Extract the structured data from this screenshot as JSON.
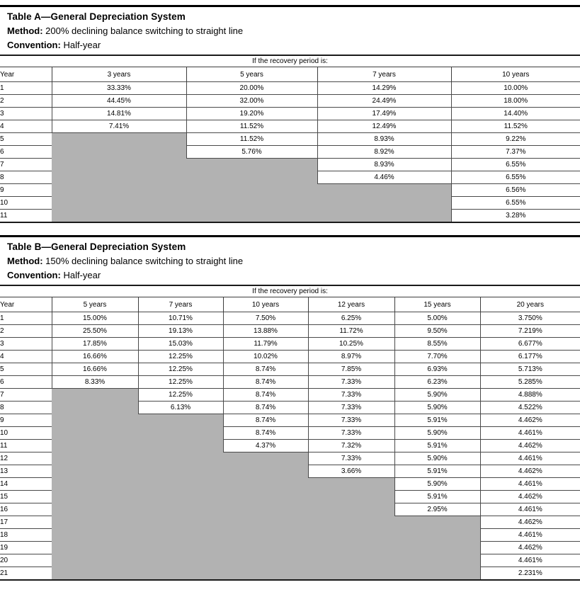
{
  "tables": [
    {
      "title": "Table A—General Depreciation System",
      "method_label": "Method:",
      "method": "200% declining balance switching to straight line",
      "convention_label": "Convention:",
      "convention": "Half-year",
      "spanner": "If the recovery period is:",
      "year_header": "Year",
      "columns": [
        "3 years",
        "5 years",
        "7 years",
        "10 years"
      ],
      "col_widths": [
        "73px",
        "190px",
        "185px",
        "189px",
        "182px"
      ],
      "rows": [
        {
          "year": "1",
          "values": [
            "33.33%",
            "20.00%",
            "14.29%",
            "10.00%"
          ]
        },
        {
          "year": "2",
          "values": [
            "44.45%",
            "32.00%",
            "24.49%",
            "18.00%"
          ]
        },
        {
          "year": "3",
          "values": [
            "14.81%",
            "19.20%",
            "17.49%",
            "14.40%"
          ]
        },
        {
          "year": "4",
          "values": [
            "7.41%",
            "11.52%",
            "12.49%",
            "11.52%"
          ]
        },
        {
          "year": "5",
          "values": [
            null,
            "11.52%",
            "8.93%",
            "9.22%"
          ]
        },
        {
          "year": "6",
          "values": [
            null,
            "5.76%",
            "8.92%",
            "7.37%"
          ]
        },
        {
          "year": "7",
          "values": [
            null,
            null,
            "8.93%",
            "6.55%"
          ]
        },
        {
          "year": "8",
          "values": [
            null,
            null,
            "4.46%",
            "6.55%"
          ]
        },
        {
          "year": "9",
          "values": [
            null,
            null,
            null,
            "6.56%"
          ]
        },
        {
          "year": "10",
          "values": [
            null,
            null,
            null,
            "6.55%"
          ]
        },
        {
          "year": "11",
          "values": [
            null,
            null,
            null,
            "3.28%"
          ]
        }
      ]
    },
    {
      "title": "Table B—General Depreciation System",
      "method_label": "Method:",
      "method": "150% declining balance switching to straight line",
      "convention_label": "Convention:",
      "convention": "Half-year",
      "spanner": "If the recovery period is:",
      "year_header": "Year",
      "columns": [
        "5 years",
        "7 years",
        "10 years",
        "12 years",
        "15 years",
        "20 years"
      ],
      "col_widths": [
        "73px",
        "122px",
        "120px",
        "120px",
        "122px",
        "121px",
        "141px"
      ],
      "rows": [
        {
          "year": "1",
          "values": [
            "15.00%",
            "10.71%",
            "7.50%",
            "6.25%",
            "5.00%",
            "3.750%"
          ]
        },
        {
          "year": "2",
          "values": [
            "25.50%",
            "19.13%",
            "13.88%",
            "11.72%",
            "9.50%",
            "7.219%"
          ]
        },
        {
          "year": "3",
          "values": [
            "17.85%",
            "15.03%",
            "11.79%",
            "10.25%",
            "8.55%",
            "6.677%"
          ]
        },
        {
          "year": "4",
          "values": [
            "16.66%",
            "12.25%",
            "10.02%",
            "8.97%",
            "7.70%",
            "6.177%"
          ]
        },
        {
          "year": "5",
          "values": [
            "16.66%",
            "12.25%",
            "8.74%",
            "7.85%",
            "6.93%",
            "5.713%"
          ]
        },
        {
          "year": "6",
          "values": [
            "8.33%",
            "12.25%",
            "8.74%",
            "7.33%",
            "6.23%",
            "5.285%"
          ]
        },
        {
          "year": "7",
          "values": [
            null,
            "12.25%",
            "8.74%",
            "7.33%",
            "5.90%",
            "4.888%"
          ]
        },
        {
          "year": "8",
          "values": [
            null,
            "6.13%",
            "8.74%",
            "7.33%",
            "5.90%",
            "4.522%"
          ]
        },
        {
          "year": "9",
          "values": [
            null,
            null,
            "8.74%",
            "7.33%",
            "5.91%",
            "4.462%"
          ]
        },
        {
          "year": "10",
          "values": [
            null,
            null,
            "8.74%",
            "7.33%",
            "5.90%",
            "4.461%"
          ]
        },
        {
          "year": "11",
          "values": [
            null,
            null,
            "4.37%",
            "7.32%",
            "5.91%",
            "4.462%"
          ]
        },
        {
          "year": "12",
          "values": [
            null,
            null,
            null,
            "7.33%",
            "5.90%",
            "4.461%"
          ]
        },
        {
          "year": "13",
          "values": [
            null,
            null,
            null,
            "3.66%",
            "5.91%",
            "4.462%"
          ]
        },
        {
          "year": "14",
          "values": [
            null,
            null,
            null,
            null,
            "5.90%",
            "4.461%"
          ]
        },
        {
          "year": "15",
          "values": [
            null,
            null,
            null,
            null,
            "5.91%",
            "4.462%"
          ]
        },
        {
          "year": "16",
          "values": [
            null,
            null,
            null,
            null,
            "2.95%",
            "4.461%"
          ]
        },
        {
          "year": "17",
          "values": [
            null,
            null,
            null,
            null,
            null,
            "4.462%"
          ]
        },
        {
          "year": "18",
          "values": [
            null,
            null,
            null,
            null,
            null,
            "4.461%"
          ]
        },
        {
          "year": "19",
          "values": [
            null,
            null,
            null,
            null,
            null,
            "4.462%"
          ]
        },
        {
          "year": "20",
          "values": [
            null,
            null,
            null,
            null,
            null,
            "4.461%"
          ]
        },
        {
          "year": "21",
          "values": [
            null,
            null,
            null,
            null,
            null,
            "2.231%"
          ]
        }
      ]
    }
  ]
}
